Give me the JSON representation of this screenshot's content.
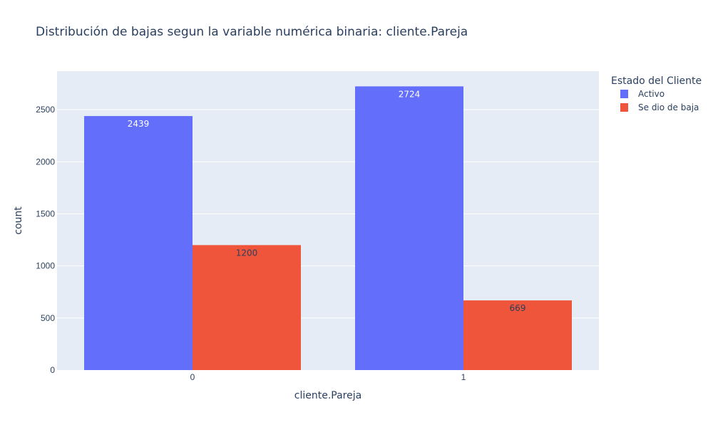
{
  "chart_data": {
    "type": "bar",
    "barmode": "group",
    "title": "Distribución de bajas segun la variable numérica binaria: cliente.Pareja",
    "xlabel": "cliente.Pareja",
    "ylabel": "count",
    "categories": [
      "0",
      "1"
    ],
    "ylim": [
      0,
      2870
    ],
    "yticks": [
      0,
      500,
      1000,
      1500,
      2000,
      2500
    ],
    "grid": true,
    "legend": {
      "title": "Estado del Cliente",
      "placement": "top-right"
    },
    "series": [
      {
        "name": "Activo",
        "values": [
          2439,
          2724
        ],
        "color": "#636efa",
        "label_color": "#ffffff"
      },
      {
        "name": "Se dio de baja",
        "values": [
          1200,
          669
        ],
        "color": "#ef553b",
        "label_color": "#2a3f5f"
      }
    ],
    "plot_background": "#e5ecf6",
    "text_color": "#2a3f5f"
  }
}
